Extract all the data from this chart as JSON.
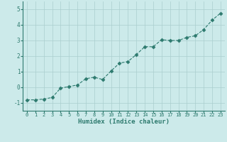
{
  "x": [
    0,
    1,
    2,
    3,
    4,
    5,
    6,
    7,
    8,
    9,
    10,
    11,
    12,
    13,
    14,
    15,
    16,
    17,
    18,
    19,
    20,
    21,
    22,
    23
  ],
  "y": [
    -0.8,
    -0.8,
    -0.75,
    -0.65,
    -0.05,
    0.05,
    0.15,
    0.55,
    0.65,
    0.5,
    1.05,
    1.55,
    1.65,
    2.1,
    2.6,
    2.6,
    3.05,
    3.0,
    3.0,
    3.2,
    3.3,
    3.7,
    4.3,
    4.75
  ],
  "xlabel": "Humidex (Indice chaleur)",
  "ylim": [
    -1.5,
    5.5
  ],
  "xlim": [
    -0.5,
    23.5
  ],
  "yticks": [
    -1,
    0,
    1,
    2,
    3,
    4,
    5
  ],
  "xticks": [
    0,
    1,
    2,
    3,
    4,
    5,
    6,
    7,
    8,
    9,
    10,
    11,
    12,
    13,
    14,
    15,
    16,
    17,
    18,
    19,
    20,
    21,
    22,
    23
  ],
  "line_color": "#2d7a6e",
  "marker": "D",
  "marker_size": 2.5,
  "bg_color": "#cceaea",
  "grid_color": "#aacece",
  "tick_color": "#2d7a6e",
  "label_color": "#2d7a6e",
  "font_family": "monospace"
}
